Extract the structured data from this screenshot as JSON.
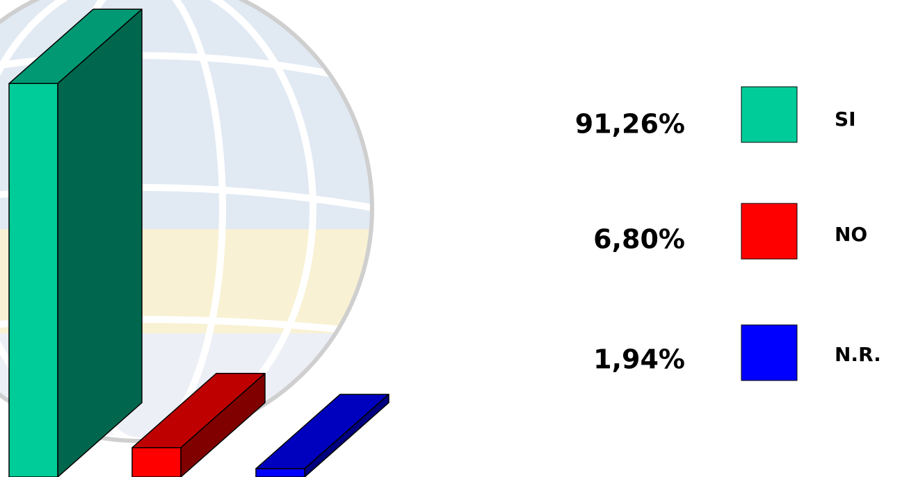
{
  "chart_data": {
    "type": "bar3d",
    "categories": [
      "SI",
      "NO",
      "N.R."
    ],
    "values": [
      91.26,
      6.8,
      1.94
    ],
    "value_labels": [
      "91,26%",
      "6,80%",
      "1,94%"
    ],
    "colors": [
      "#00cc99",
      "#ff0000",
      "#0000ff"
    ]
  }
}
